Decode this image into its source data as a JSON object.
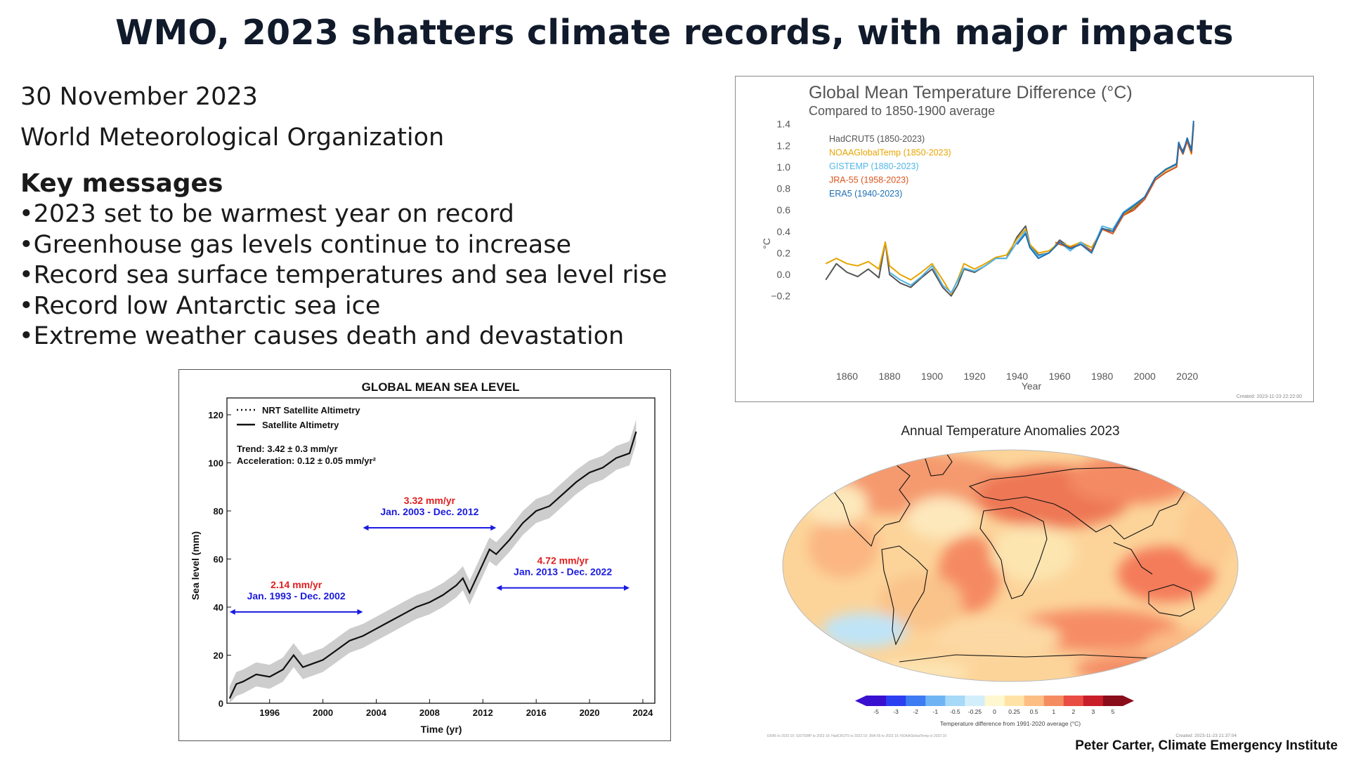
{
  "slide": {
    "title": "WMO, 2023 shatters climate records, with major impacts",
    "date": "30 November 2023",
    "organization": "World Meteorological Organization",
    "key_heading": "Key messages",
    "bullets": [
      "•2023 set to be warmest year on record",
      "•Greenhouse gas levels continue to increase",
      "•Record sea surface temperatures and sea level rise",
      "•Record low Antarctic sea ice",
      "•Extreme weather causes death and devastation"
    ],
    "credit": "Peter Carter, Climate Emergency Institute"
  },
  "chart_data": [
    {
      "type": "line",
      "title": "Global Mean Temperature Difference (°C)",
      "subtitle": "Compared to 1850-1900 average",
      "xlabel": "Year",
      "ylabel": "°C",
      "xlim": [
        1840,
        2030
      ],
      "ylim": [
        -0.3,
        1.45
      ],
      "xticks": [
        1860,
        1880,
        1900,
        1920,
        1940,
        1960,
        1980,
        2000,
        2020
      ],
      "xtick_labels": [
        "1860",
        "1880",
        "1900",
        "1920",
        "1940",
        "1960",
        "1980",
        "2000",
        "2020"
      ],
      "yticks": [
        -0.2,
        0.0,
        0.2,
        0.4,
        0.6,
        0.8,
        1.0,
        1.2,
        1.4
      ],
      "ytick_labels": [
        "−0.2",
        "0.0",
        "0.2",
        "0.4",
        "0.6",
        "0.8",
        "1.0",
        "1.2",
        "1.4"
      ],
      "grid": false,
      "legend_position": "top-left",
      "footnote": "Created: 2023-11-23 22:22:00",
      "series": [
        {
          "name": "HadCRUT5 (1850-2023)",
          "color": "#555555",
          "x": [
            1850,
            1855,
            1860,
            1865,
            1870,
            1875,
            1878,
            1880,
            1885,
            1890,
            1895,
            1900,
            1905,
            1909,
            1912,
            1915,
            1920,
            1925,
            1930,
            1935,
            1940,
            1944,
            1946,
            1950,
            1955,
            1960,
            1965,
            1970,
            1975,
            1980,
            1985,
            1990,
            1995,
            2000,
            2005,
            2010,
            2015,
            2016,
            2018,
            2020,
            2022,
            2023
          ],
          "y": [
            -0.05,
            0.1,
            0.02,
            -0.02,
            0.05,
            -0.03,
            0.3,
            0.0,
            -0.08,
            -0.12,
            -0.03,
            0.05,
            -0.12,
            -0.2,
            -0.1,
            0.05,
            0.02,
            0.08,
            0.15,
            0.15,
            0.35,
            0.45,
            0.28,
            0.18,
            0.2,
            0.32,
            0.25,
            0.28,
            0.22,
            0.42,
            0.4,
            0.55,
            0.62,
            0.7,
            0.88,
            0.95,
            1.0,
            1.2,
            1.15,
            1.25,
            1.17,
            1.4
          ]
        },
        {
          "name": "NOAAGlobalTemp (1850-2023)",
          "color": "#e8a400",
          "x": [
            1850,
            1855,
            1860,
            1865,
            1870,
            1875,
            1878,
            1880,
            1885,
            1890,
            1895,
            1900,
            1905,
            1909,
            1912,
            1915,
            1920,
            1925,
            1930,
            1935,
            1940,
            1944,
            1946,
            1950,
            1955,
            1960,
            1965,
            1970,
            1975,
            1980,
            1985,
            1990,
            1995,
            2000,
            2005,
            2010,
            2015,
            2016,
            2018,
            2020,
            2022,
            2023
          ],
          "y": [
            0.1,
            0.15,
            0.1,
            0.08,
            0.12,
            0.05,
            0.3,
            0.08,
            0.0,
            -0.05,
            0.02,
            0.1,
            -0.05,
            -0.18,
            -0.05,
            0.1,
            0.05,
            0.1,
            0.16,
            0.18,
            0.33,
            0.42,
            0.28,
            0.2,
            0.22,
            0.3,
            0.26,
            0.3,
            0.25,
            0.42,
            0.42,
            0.56,
            0.63,
            0.72,
            0.9,
            0.97,
            1.02,
            1.2,
            1.12,
            1.24,
            1.12,
            1.4
          ]
        },
        {
          "name": "GISTEMP (1880-2023)",
          "color": "#52b6e8",
          "x": [
            1880,
            1885,
            1890,
            1895,
            1900,
            1905,
            1909,
            1912,
            1915,
            1920,
            1925,
            1930,
            1935,
            1940,
            1944,
            1946,
            1950,
            1955,
            1960,
            1965,
            1970,
            1975,
            1980,
            1985,
            1990,
            1995,
            2000,
            2005,
            2010,
            2015,
            2016,
            2018,
            2020,
            2022,
            2023
          ],
          "y": [
            0.02,
            -0.05,
            -0.1,
            -0.02,
            0.08,
            -0.1,
            -0.17,
            -0.06,
            0.06,
            0.03,
            0.08,
            0.15,
            0.15,
            0.3,
            0.4,
            0.26,
            0.17,
            0.2,
            0.3,
            0.22,
            0.3,
            0.22,
            0.45,
            0.42,
            0.58,
            0.65,
            0.72,
            0.9,
            0.98,
            1.02,
            1.22,
            1.13,
            1.26,
            1.14,
            1.41
          ]
        },
        {
          "name": "JRA-55 (1958-2023)",
          "color": "#d9541e",
          "x": [
            1958,
            1960,
            1965,
            1970,
            1975,
            1980,
            1985,
            1990,
            1995,
            2000,
            2005,
            2010,
            2015,
            2016,
            2018,
            2020,
            2022,
            2023
          ],
          "y": [
            0.3,
            0.28,
            0.25,
            0.28,
            0.22,
            0.42,
            0.38,
            0.55,
            0.6,
            0.7,
            0.88,
            0.95,
            1.0,
            1.2,
            1.12,
            1.24,
            1.13,
            1.39
          ]
        },
        {
          "name": "ERA5 (1940-2023)",
          "color": "#1e6fb3",
          "x": [
            1940,
            1944,
            1946,
            1950,
            1955,
            1960,
            1965,
            1970,
            1975,
            1980,
            1985,
            1990,
            1995,
            2000,
            2005,
            2010,
            2015,
            2016,
            2018,
            2020,
            2022,
            2023
          ],
          "y": [
            0.28,
            0.38,
            0.25,
            0.15,
            0.2,
            0.3,
            0.24,
            0.28,
            0.2,
            0.43,
            0.4,
            0.57,
            0.64,
            0.72,
            0.9,
            0.98,
            1.03,
            1.23,
            1.13,
            1.27,
            1.15,
            1.43
          ]
        }
      ]
    },
    {
      "type": "line",
      "title": "GLOBAL MEAN SEA LEVEL",
      "xlabel": "Time (yr)",
      "ylabel": "Sea level (mm)",
      "xlim": [
        1993,
        2025
      ],
      "ylim": [
        0,
        125
      ],
      "xticks": [
        1996,
        2000,
        2004,
        2008,
        2012,
        2016,
        2020,
        2024
      ],
      "xtick_labels": [
        "1996",
        "2000",
        "2004",
        "2008",
        "2012",
        "2016",
        "2020",
        "2024"
      ],
      "yticks": [
        0,
        20,
        40,
        60,
        80,
        100,
        120
      ],
      "ytick_labels": [
        "0",
        "20",
        "40",
        "60",
        "80",
        "100",
        "120"
      ],
      "grid": false,
      "legend_position": "top-left",
      "legend": [
        "NRT Satellite Altimetry",
        "Satellite Altimetry"
      ],
      "trend_text": "Trend: 3.42 ± 0.3 mm/yr",
      "accel_text": "Acceleration: 0.12 ± 0.05 mm/yr²",
      "series": [
        {
          "name": "Satellite Altimetry",
          "color": "#111111",
          "x": [
            1993,
            1993.5,
            1994,
            1995,
            1996,
            1997,
            1997.8,
            1998.5,
            1999,
            2000,
            2001,
            2002,
            2003,
            2004,
            2005,
            2006,
            2007,
            2008,
            2009,
            2010,
            2010.5,
            2011,
            2012,
            2012.5,
            2013,
            2014,
            2015,
            2016,
            2017,
            2018,
            2019,
            2020,
            2021,
            2022,
            2023,
            2023.5
          ],
          "y": [
            2,
            8,
            9,
            12,
            11,
            14,
            20,
            15,
            16,
            18,
            22,
            26,
            28,
            31,
            34,
            37,
            40,
            42,
            45,
            49,
            52,
            46,
            58,
            64,
            62,
            68,
            75,
            80,
            82,
            87,
            92,
            96,
            98,
            102,
            104,
            113
          ]
        }
      ],
      "annotations": [
        {
          "rate": "2.14 mm/yr",
          "period": "Jan. 1993 - Dec. 2002",
          "x_start": 1993,
          "x_end": 2003,
          "y": 38
        },
        {
          "rate": "3.32 mm/yr",
          "period": "Jan. 2003 - Dec. 2012",
          "x_start": 2003,
          "x_end": 2013,
          "y": 73
        },
        {
          "rate": "4.72 mm/yr",
          "period": "Jan. 2013 - Dec. 2022",
          "x_start": 2013,
          "x_end": 2023,
          "y": 48
        }
      ]
    },
    {
      "type": "heatmap",
      "title": "Annual Temperature Anomalies 2023",
      "colorbar_label": "Temperature difference from 1991-2020 average (°C)",
      "colorbar_ticks": [
        "-5",
        "-3",
        "-2",
        "-1",
        "-0.5",
        "-0.25",
        "0",
        "0.25",
        "0.5",
        "1",
        "2",
        "3",
        "5"
      ],
      "colorbar_colors": [
        "#3a10d0",
        "#2b3ff0",
        "#3d7bf2",
        "#6eb4f5",
        "#a6d8f7",
        "#d3eefb",
        "#fff7cf",
        "#ffe3a6",
        "#fdbe84",
        "#f58c60",
        "#e84c42",
        "#c81e2a",
        "#8a0d1c"
      ],
      "footnote_left": "ERA5 to 2023 10; GISTEMP to 2023 10; HadCRUT5 to 2023 10; JRA-55 to 2023 10; NOAAGlobalTemp to 2023 10",
      "footnote_right": "Created: 2023-11-23 21:37:04"
    }
  ]
}
